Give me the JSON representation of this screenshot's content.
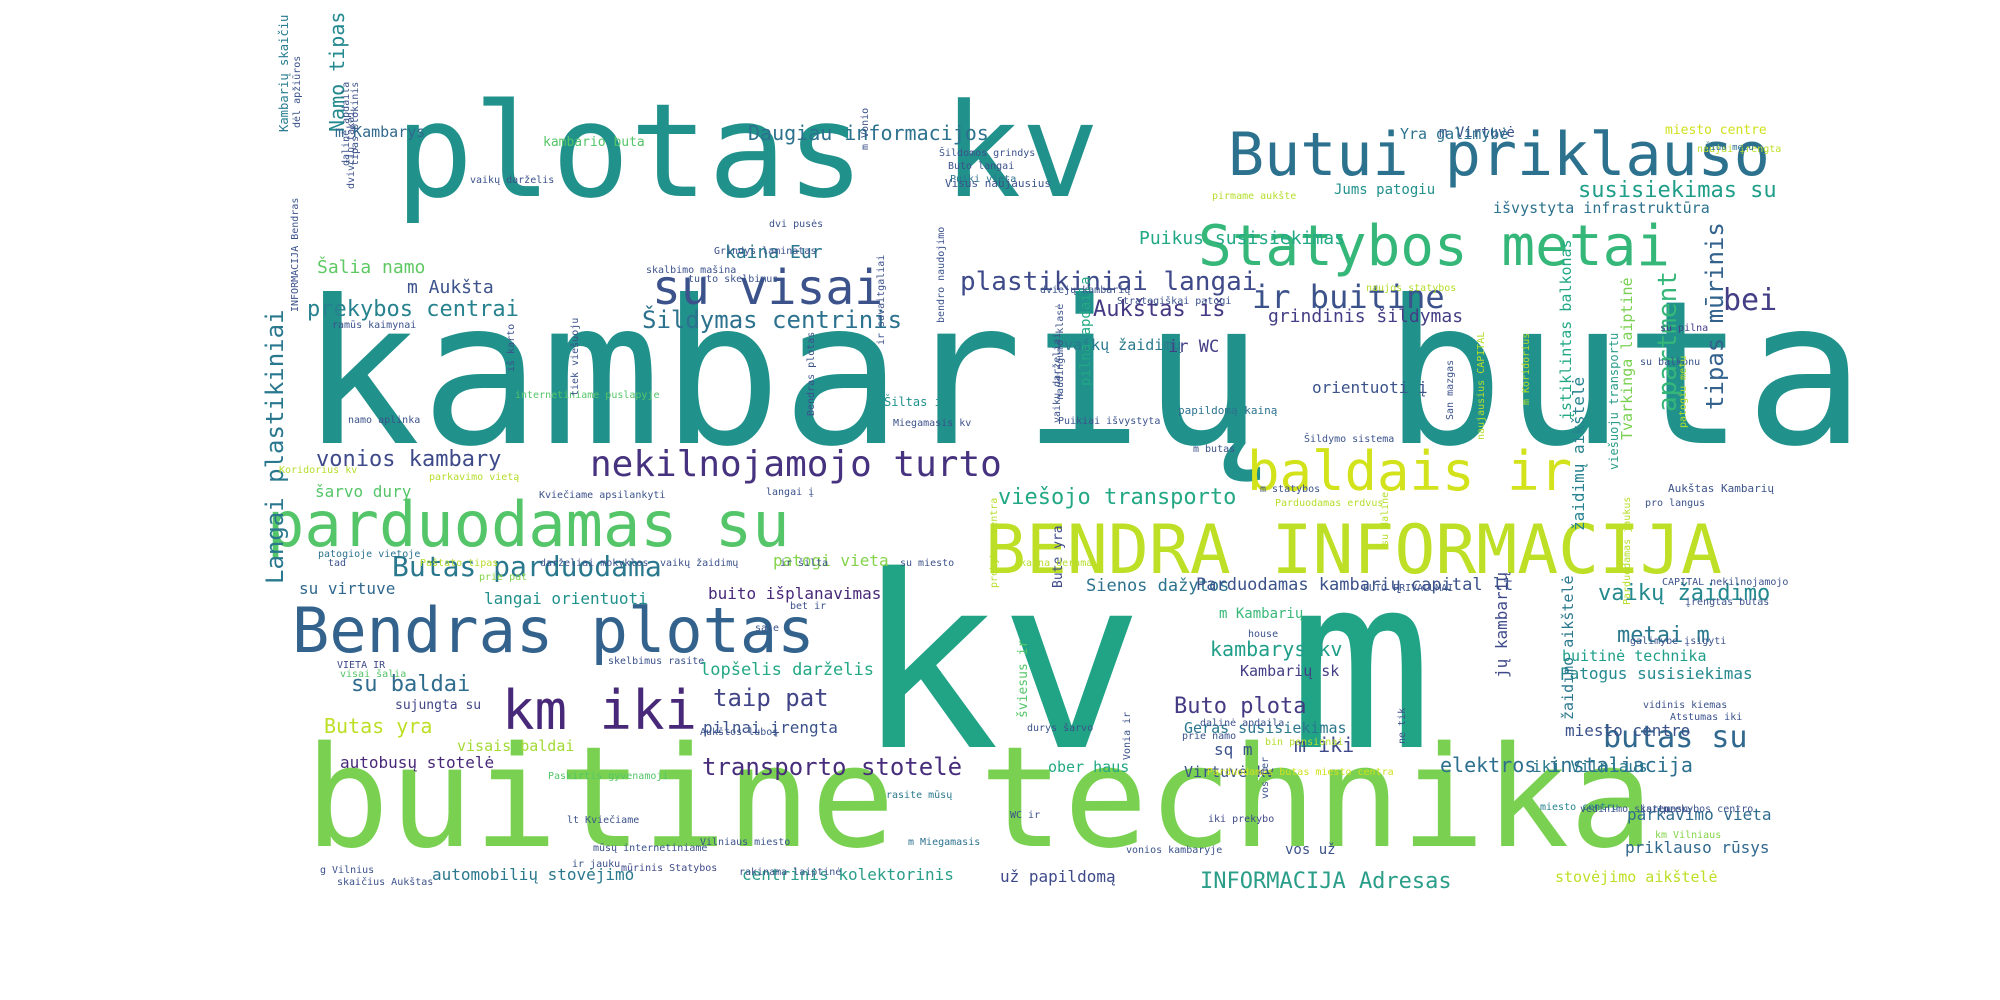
{
  "palette": [
    "#440154",
    "#3b528b",
    "#21918c",
    "#27a37f",
    "#5ec962",
    "#b5de2b",
    "#d0e11c",
    "#fde725"
  ],
  "words": [
    {
      "text": "kambarių buta",
      "color": "#21918c"
    },
    {
      "text": "kv m",
      "color": "#21a386"
    },
    {
      "text": "buitine technika",
      "color": "#7ad151"
    },
    {
      "text": "plotas kv",
      "color": "#21918c"
    },
    {
      "text": "BENDRA INFORMACIJA",
      "color": "#bddf26"
    },
    {
      "text": "Statybos metai",
      "color": "#35b779"
    },
    {
      "text": "parduodamas su",
      "color": "#54c568"
    },
    {
      "text": "Bendras plotas",
      "color": "#33638d"
    },
    {
      "text": "Butui priklauso",
      "color": "#2c728e"
    },
    {
      "text": "baldais ir",
      "color": "#d2e21b"
    },
    {
      "text": "su visai",
      "color": "#3b528b"
    },
    {
      "text": "km iki",
      "color": "#482878"
    },
    {
      "text": "nekilnojamojo turto",
      "color": "#46327e"
    },
    {
      "text": "Kambarių skaičiu",
      "color": "#287c8e"
    },
    {
      "text": "ir buitine",
      "color": "#3b528b"
    },
    {
      "text": "bei",
      "color": "#433e85"
    },
    {
      "text": "Butas parduodama",
      "color": "#2a788e"
    },
    {
      "text": "butas su",
      "color": "#31688e"
    },
    {
      "text": "plastikiniai langai",
      "color": "#3e4a89"
    },
    {
      "text": "tipas mūrinis",
      "color": "#33638d"
    },
    {
      "text": "apartment",
      "color": "#35b779"
    },
    {
      "text": "Langai plastikiniai",
      "color": "#2a788e"
    },
    {
      "text": "Šildymas centrinis",
      "color": "#2c728e"
    },
    {
      "text": "vaikų žaidimo",
      "color": "#23898e"
    },
    {
      "text": "susisiekimas su",
      "color": "#1f9e89"
    },
    {
      "text": "prekybos centrai",
      "color": "#26828e"
    },
    {
      "text": "vonios kambary",
      "color": "#3e4a89"
    },
    {
      "text": "viešojo transporto",
      "color": "#22a884"
    },
    {
      "text": "Aukštas iš",
      "color": "#443983"
    },
    {
      "text": "Daugiau informacijos",
      "color": "#2c728e"
    },
    {
      "text": "transporto stotelė",
      "color": "#472d7b"
    },
    {
      "text": "taip pat",
      "color": "#414487"
    },
    {
      "text": "metai m",
      "color": "#2a788e"
    },
    {
      "text": "INFORMACIJA Adresas",
      "color": "#2a9e88"
    },
    {
      "text": "Buto plota",
      "color": "#443983"
    },
    {
      "text": "su baldai",
      "color": "#2f6c8e"
    },
    {
      "text": "Namo tipas",
      "color": "#23898e"
    },
    {
      "text": "Butas yra",
      "color": "#bddf26"
    },
    {
      "text": "kaina Eur",
      "color": "#2a788e"
    },
    {
      "text": "elektros instaliacija",
      "color": "#2d708e"
    },
    {
      "text": "m iki",
      "color": "#3e4a89"
    },
    {
      "text": "kambarys kv",
      "color": "#1f9e89"
    },
    {
      "text": "Puikus susisiekimas",
      "color": "#22a884"
    },
    {
      "text": "grindinis šildymas",
      "color": "#433e85"
    },
    {
      "text": "ir WC",
      "color": "#433e85"
    },
    {
      "text": "m Aukšta",
      "color": "#3b528b"
    },
    {
      "text": "Šalia namo",
      "color": "#5ec962"
    },
    {
      "text": "m Kambarys",
      "color": "#31688e"
    },
    {
      "text": "Sienos dažytos",
      "color": "#2c728e"
    },
    {
      "text": "Parduodamas kambarių capital lt",
      "color": "#3b528b"
    },
    {
      "text": "lopšelis darželis",
      "color": "#22a884"
    },
    {
      "text": "buito išplanavimas",
      "color": "#482878"
    },
    {
      "text": "langai orientuoti",
      "color": "#21918c"
    },
    {
      "text": "patogi vieta",
      "color": "#84d44b"
    },
    {
      "text": "su virtuve",
      "color": "#31688e"
    },
    {
      "text": "šarvo dury",
      "color": "#54c568"
    },
    {
      "text": "iki Vilniaus",
      "color": "#2a788e"
    },
    {
      "text": "parkavimo vieta",
      "color": "#2f6c8e"
    },
    {
      "text": "priklauso rūsys",
      "color": "#31688e"
    },
    {
      "text": "stovėjimo aikštelė",
      "color": "#bddf26"
    },
    {
      "text": "centrinis kolektorinis",
      "color": "#2a9e88"
    },
    {
      "text": "už papildomą",
      "color": "#3e4a89"
    },
    {
      "text": "automobilių stovėjimo",
      "color": "#2a788e"
    },
    {
      "text": "autobusų stotelė",
      "color": "#482878"
    },
    {
      "text": "visais baldai",
      "color": "#a2da37"
    },
    {
      "text": "pilnai įrengta",
      "color": "#3b528b"
    },
    {
      "text": "Patogus susisiekimas",
      "color": "#23898e"
    },
    {
      "text": "buitinė technika",
      "color": "#1f9e89"
    },
    {
      "text": "miesto centro",
      "color": "#3b528b"
    },
    {
      "text": "Geras susisiekimas",
      "color": "#2a788e"
    },
    {
      "text": "Virtuvė kv",
      "color": "#3b528b"
    },
    {
      "text": "ober haus",
      "color": "#22a884"
    },
    {
      "text": "sq m",
      "color": "#3b528b"
    },
    {
      "text": "Kambarių sk",
      "color": "#433e85"
    },
    {
      "text": "m Kambarių",
      "color": "#38b977"
    },
    {
      "text": "jų kambarių",
      "color": "#3e4a89"
    },
    {
      "text": "įstiklintas balkonas",
      "color": "#22a884"
    },
    {
      "text": "žaidimų aikštelė",
      "color": "#26828e"
    },
    {
      "text": "žaidimo aikštelė",
      "color": "#2a788e"
    },
    {
      "text": "Tvarkinga laiptinė",
      "color": "#7ad151"
    },
    {
      "text": "orientuoti į",
      "color": "#3b528b"
    },
    {
      "text": "vaikų žaidimų",
      "color": "#2a788e"
    },
    {
      "text": "pilna apdaila",
      "color": "#22a884"
    },
    {
      "text": "m Virtuvė",
      "color": "#3b528b"
    },
    {
      "text": "miesto centre",
      "color": "#d0e11c"
    },
    {
      "text": "išvystyta infrastruktūra",
      "color": "#2c728e"
    },
    {
      "text": "Jums patogiu",
      "color": "#21918c"
    },
    {
      "text": "Yra galimybė",
      "color": "#2c728e"
    },
    {
      "text": "kambario buta",
      "color": "#54c568"
    },
    {
      "text": "sujungta su",
      "color": "#414487"
    },
    {
      "text": "Bute yra",
      "color": "#3e4a89"
    },
    {
      "text": "šviesus ir",
      "color": "#54c568"
    },
    {
      "text": "viešuoju transportu",
      "color": "#2a9e88"
    },
    {
      "text": "Aukštas Kambarių",
      "color": "#3b528b"
    },
    {
      "text": "Šiltas ir",
      "color": "#21918c"
    },
    {
      "text": "Puiki vieta",
      "color": "#2c728e"
    },
    {
      "text": "Visus naujausius",
      "color": "#3b528b"
    },
    {
      "text": "papildomą kainą",
      "color": "#2c728e"
    },
    {
      "text": "m butas",
      "color": "#3b528b"
    },
    {
      "text": "su pilna",
      "color": "#433e85"
    },
    {
      "text": "naujai įrengta",
      "color": "#bddf26"
    },
    {
      "text": "Šiuo metu",
      "color": "#2c728e"
    },
    {
      "text": "su balkonu",
      "color": "#3b528b"
    },
    {
      "text": "pro langus",
      "color": "#3b528b"
    },
    {
      "text": "Parduodamas erdvus",
      "color": "#b5de2b"
    },
    {
      "text": "Parduodamas butas miesto centra",
      "color": "#d0e11c"
    },
    {
      "text": "iki prekybo",
      "color": "#3e4a89"
    },
    {
      "text": "kartu su",
      "color": "#3b528b"
    },
    {
      "text": "km Vilniaus",
      "color": "#84d44b"
    },
    {
      "text": "miesto centru",
      "color": "#26828e"
    },
    {
      "text": "vos už",
      "color": "#3b528b"
    },
    {
      "text": "rasite mūsų",
      "color": "#2a788e"
    },
    {
      "text": "m Miegamasis",
      "color": "#2c728e"
    },
    {
      "text": "vonios kambaryje",
      "color": "#3b528b"
    },
    {
      "text": "mūrinis Statybos",
      "color": "#3e4a89"
    },
    {
      "text": "ir jauku",
      "color": "#3b528b"
    },
    {
      "text": "mūsų internetiniame",
      "color": "#3b528b"
    },
    {
      "text": "g Vilnius",
      "color": "#3b528b"
    },
    {
      "text": "lt Kviečiame",
      "color": "#3b528b"
    },
    {
      "text": "Paskirtis gyvenamoji",
      "color": "#54c568"
    },
    {
      "text": "Vilniaus miesto",
      "color": "#3b528b"
    },
    {
      "text": "visai šalia",
      "color": "#54c568"
    },
    {
      "text": "VIETA IR",
      "color": "#3e4a89"
    },
    {
      "text": "skelbimus rasite",
      "color": "#3b528b"
    },
    {
      "text": "Aukštos lubos",
      "color": "#3b528b"
    },
    {
      "text": "bet ir",
      "color": "#3b528b"
    },
    {
      "text": "sale",
      "color": "#3b528b"
    },
    {
      "text": "prie pat",
      "color": "#84d44b"
    },
    {
      "text": "patogioje vietoje",
      "color": "#2c728e"
    },
    {
      "text": "tad",
      "color": "#3b528b"
    },
    {
      "text": "Koridorius kv",
      "color": "#b5de2b"
    },
    {
      "text": "parkavimo vietą",
      "color": "#b5de2b"
    },
    {
      "text": "Kviečiame apsilankyti",
      "color": "#3b528b"
    },
    {
      "text": "langai į",
      "color": "#3b528b"
    },
    {
      "text": "m statybos",
      "color": "#3b528b"
    },
    {
      "text": "internetiniame puslapyje",
      "color": "#54c568"
    },
    {
      "text": "namo aplinka",
      "color": "#3b528b"
    },
    {
      "text": "ramūs kaimynai",
      "color": "#3b528b"
    },
    {
      "text": "iš karto",
      "color": "#3b528b"
    },
    {
      "text": "tiek viešuoju",
      "color": "#3b528b"
    },
    {
      "text": "Miegamasis kv",
      "color": "#3b528b"
    },
    {
      "text": "Bendras plotas",
      "color": "#3b528b"
    },
    {
      "text": "ir savaitgaliai",
      "color": "#3b528b"
    },
    {
      "text": "turto skelbimus",
      "color": "#3b528b"
    },
    {
      "text": "skalbimo mašina",
      "color": "#3b528b"
    },
    {
      "text": "Grindys laminatas",
      "color": "#3b528b"
    },
    {
      "text": "dvi pusės",
      "color": "#3b528b"
    },
    {
      "text": "Šildomos grindys",
      "color": "#3b528b"
    },
    {
      "text": "Buto langai",
      "color": "#3b528b"
    },
    {
      "text": "m Vonio",
      "color": "#3b528b"
    },
    {
      "text": "pirmame aukšte",
      "color": "#b5de2b"
    },
    {
      "text": "naujos statybos",
      "color": "#b5de2b"
    },
    {
      "text": "dviejų kambarių",
      "color": "#3b528b"
    },
    {
      "text": "Strategiškai patogi",
      "color": "#3b528b"
    },
    {
      "text": "naudingumo klasė",
      "color": "#3b528b"
    },
    {
      "text": "Puikiai išvystyta",
      "color": "#3b528b"
    },
    {
      "text": "m Koridorius",
      "color": "#b5de2b"
    },
    {
      "text": "naujausius CAPITAL",
      "color": "#b5de2b"
    },
    {
      "text": "San mazgas",
      "color": "#3b528b"
    },
    {
      "text": "patogiu metu",
      "color": "#b5de2b"
    },
    {
      "text": "vaikų darželis",
      "color": "#3b528b"
    },
    {
      "text": "dalinė apdaila",
      "color": "#3b528b"
    },
    {
      "text": "tipas blokinis",
      "color": "#3b528b"
    },
    {
      "text": "dvivčių takai",
      "color": "#3b528b"
    },
    {
      "text": "dėl apžiūros",
      "color": "#3b528b"
    },
    {
      "text": "INFORMACIJA Bendras",
      "color": "#3b528b"
    },
    {
      "text": "house",
      "color": "#3b528b"
    },
    {
      "text": "BUTO PRIVALUMAI",
      "color": "#3b528b"
    },
    {
      "text": "CAPITAL nekilnojamojo",
      "color": "#3b528b"
    },
    {
      "text": "įrengtas butas",
      "color": "#3b528b"
    },
    {
      "text": "Parduodamas jaukus",
      "color": "#b5de2b"
    },
    {
      "text": "galimybe įsigyti",
      "color": "#3b528b"
    },
    {
      "text": "Atstumas iki",
      "color": "#3b528b"
    },
    {
      "text": "vidinis kiemas",
      "color": "#3b528b"
    },
    {
      "text": "prekybos centra",
      "color": "#b5de2b"
    },
    {
      "text": "su daline",
      "color": "#b5de2b"
    },
    {
      "text": "dalinė apdaila",
      "color": "#3b528b"
    },
    {
      "text": "prie namo",
      "color": "#3b528b"
    },
    {
      "text": "bin pensionai",
      "color": "#b5de2b"
    },
    {
      "text": "durys šarvo",
      "color": "#3b528b"
    },
    {
      "text": "Vonia ir",
      "color": "#3b528b"
    },
    {
      "text": "ne tik",
      "color": "#3b528b"
    },
    {
      "text": "vos per",
      "color": "#3b528b"
    },
    {
      "text": "WC ir",
      "color": "#3b528b"
    },
    {
      "text": "skaičius Aukštas",
      "color": "#3b528b"
    },
    {
      "text": "rakinama laiptinė",
      "color": "#3b528b"
    },
    {
      "text": "bendro naudojimo",
      "color": "#3b528b"
    },
    {
      "text": "vaikų darželiai",
      "color": "#3b528b"
    },
    {
      "text": "Šildymo sistema",
      "color": "#3b528b"
    },
    {
      "text": "prekybos centro",
      "color": "#3b528b"
    },
    {
      "text": "vedinimo sistema",
      "color": "#3b528b"
    },
    {
      "text": "Paštato tipas",
      "color": "#b5de2b"
    },
    {
      "text": "darželiai mokyklos",
      "color": "#3b528b"
    },
    {
      "text": "vaikų žaidimų",
      "color": "#3b528b"
    },
    {
      "text": "ir šilta",
      "color": "#3b528b"
    },
    {
      "text": "su miesto",
      "color": "#3b528b"
    },
    {
      "text": "kaina derama",
      "color": "#b5de2b"
    }
  ]
}
